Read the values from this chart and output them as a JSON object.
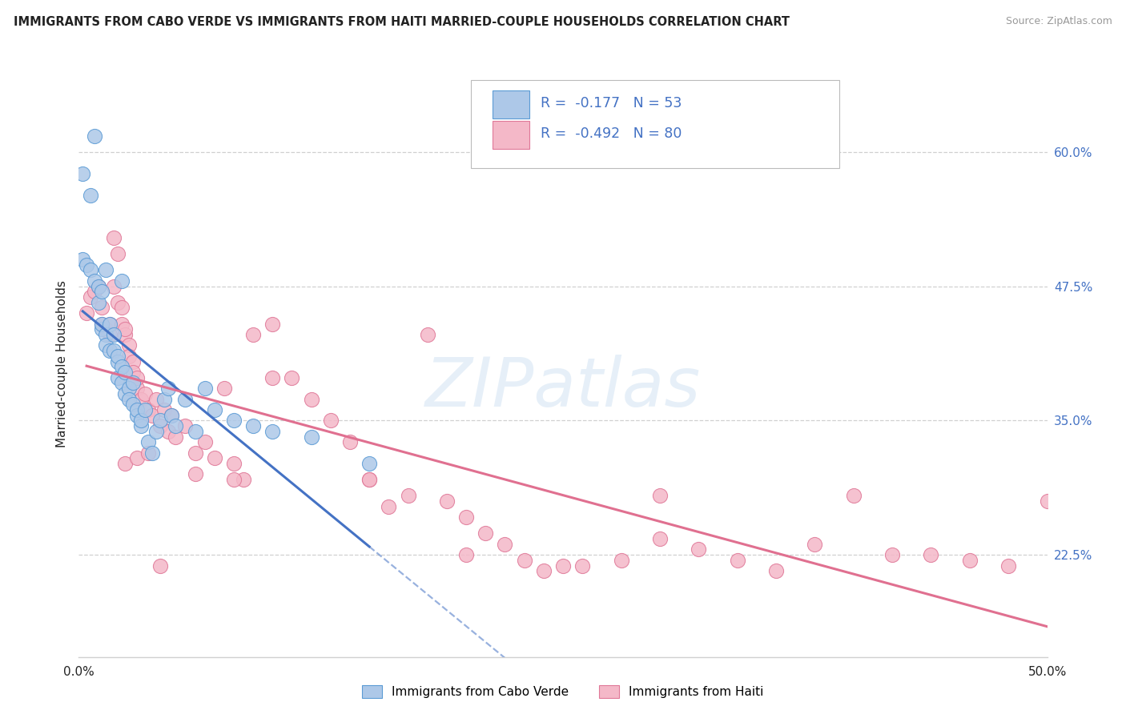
{
  "title": "IMMIGRANTS FROM CABO VERDE VS IMMIGRANTS FROM HAITI MARRIED-COUPLE HOUSEHOLDS CORRELATION CHART",
  "source": "Source: ZipAtlas.com",
  "ylabel": "Married-couple Households",
  "ytick_vals": [
    0.225,
    0.35,
    0.475,
    0.6
  ],
  "ytick_labels": [
    "22.5%",
    "35.0%",
    "47.5%",
    "60.0%"
  ],
  "xlim": [
    0.0,
    0.5
  ],
  "ylim": [
    0.13,
    0.675
  ],
  "xtick_labels": [
    "0.0%",
    "50.0%"
  ],
  "legend_cabo_verde": "Immigrants from Cabo Verde",
  "legend_haiti": "Immigrants from Haiti",
  "r_cabo_verde": "-0.177",
  "n_cabo_verde": "53",
  "r_haiti": "-0.492",
  "n_haiti": "80",
  "cabo_verde_fill": "#adc8e8",
  "cabo_verde_edge": "#5b9bd5",
  "haiti_fill": "#f4b8c8",
  "haiti_edge": "#e07898",
  "cabo_verde_line": "#4472c4",
  "haiti_line": "#e07090",
  "bg_color": "#ffffff",
  "grid_color": "#d0d0d0",
  "text_dark": "#222222",
  "axis_blue": "#4472c4",
  "cabo_verde_x": [
    0.002,
    0.006,
    0.002,
    0.004,
    0.006,
    0.008,
    0.01,
    0.01,
    0.012,
    0.012,
    0.012,
    0.014,
    0.014,
    0.016,
    0.016,
    0.018,
    0.018,
    0.02,
    0.02,
    0.02,
    0.022,
    0.022,
    0.024,
    0.024,
    0.026,
    0.026,
    0.028,
    0.028,
    0.03,
    0.03,
    0.032,
    0.032,
    0.034,
    0.036,
    0.038,
    0.04,
    0.042,
    0.044,
    0.046,
    0.048,
    0.05,
    0.055,
    0.06,
    0.065,
    0.07,
    0.08,
    0.09,
    0.1,
    0.12,
    0.15,
    0.008,
    0.014,
    0.022
  ],
  "cabo_verde_y": [
    0.58,
    0.56,
    0.5,
    0.495,
    0.49,
    0.48,
    0.475,
    0.46,
    0.47,
    0.435,
    0.44,
    0.43,
    0.42,
    0.415,
    0.44,
    0.43,
    0.415,
    0.405,
    0.41,
    0.39,
    0.4,
    0.385,
    0.395,
    0.375,
    0.38,
    0.37,
    0.365,
    0.385,
    0.355,
    0.36,
    0.345,
    0.35,
    0.36,
    0.33,
    0.32,
    0.34,
    0.35,
    0.37,
    0.38,
    0.355,
    0.345,
    0.37,
    0.34,
    0.38,
    0.36,
    0.35,
    0.345,
    0.34,
    0.335,
    0.31,
    0.615,
    0.49,
    0.48
  ],
  "haiti_x": [
    0.004,
    0.006,
    0.008,
    0.01,
    0.012,
    0.012,
    0.014,
    0.016,
    0.016,
    0.018,
    0.02,
    0.02,
    0.022,
    0.022,
    0.024,
    0.024,
    0.026,
    0.026,
    0.028,
    0.028,
    0.03,
    0.03,
    0.032,
    0.034,
    0.036,
    0.038,
    0.04,
    0.042,
    0.044,
    0.046,
    0.048,
    0.05,
    0.055,
    0.06,
    0.065,
    0.07,
    0.075,
    0.08,
    0.085,
    0.09,
    0.1,
    0.11,
    0.12,
    0.13,
    0.14,
    0.15,
    0.16,
    0.17,
    0.18,
    0.19,
    0.2,
    0.21,
    0.22,
    0.23,
    0.24,
    0.25,
    0.26,
    0.28,
    0.3,
    0.32,
    0.34,
    0.36,
    0.38,
    0.4,
    0.42,
    0.44,
    0.46,
    0.48,
    0.5,
    0.018,
    0.024,
    0.03,
    0.036,
    0.042,
    0.06,
    0.08,
    0.1,
    0.15,
    0.2,
    0.3
  ],
  "haiti_y": [
    0.45,
    0.465,
    0.47,
    0.475,
    0.455,
    0.44,
    0.435,
    0.44,
    0.43,
    0.52,
    0.505,
    0.46,
    0.455,
    0.44,
    0.43,
    0.435,
    0.42,
    0.41,
    0.405,
    0.395,
    0.38,
    0.39,
    0.37,
    0.375,
    0.36,
    0.355,
    0.37,
    0.345,
    0.36,
    0.34,
    0.355,
    0.335,
    0.345,
    0.32,
    0.33,
    0.315,
    0.38,
    0.31,
    0.295,
    0.43,
    0.44,
    0.39,
    0.37,
    0.35,
    0.33,
    0.295,
    0.27,
    0.28,
    0.43,
    0.275,
    0.26,
    0.245,
    0.235,
    0.22,
    0.21,
    0.215,
    0.215,
    0.22,
    0.24,
    0.23,
    0.22,
    0.21,
    0.235,
    0.28,
    0.225,
    0.225,
    0.22,
    0.215,
    0.275,
    0.475,
    0.31,
    0.315,
    0.32,
    0.215,
    0.3,
    0.295,
    0.39,
    0.295,
    0.225,
    0.28
  ]
}
